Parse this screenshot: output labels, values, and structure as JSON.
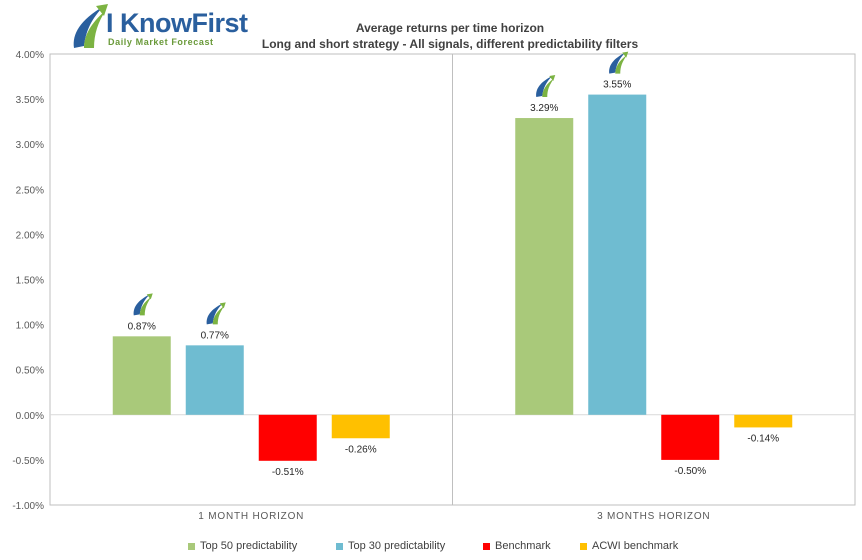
{
  "logo": {
    "brand": "I KnowFirst",
    "tagline": "Daily Market Forecast"
  },
  "chart_data": {
    "type": "bar",
    "title": "Average returns per time horizon",
    "subtitle": "Long and short strategy - All signals, different predictability filters",
    "categories": [
      "1 MONTH HORIZON",
      "3 MONTHS HORIZON"
    ],
    "series": [
      {
        "name": "Top 50 predictability",
        "color": "#a9c97a",
        "values": [
          0.87,
          3.29
        ],
        "labels": [
          "0.87%",
          "3.29%"
        ],
        "highlight": [
          true,
          true
        ]
      },
      {
        "name": "Top 30 predictability",
        "color": "#6fbcd1",
        "values": [
          0.77,
          3.55
        ],
        "labels": [
          "0.77%",
          "3.55%"
        ],
        "highlight": [
          true,
          true
        ]
      },
      {
        "name": "Benchmark",
        "color": "#ff0000",
        "values": [
          -0.51,
          -0.5
        ],
        "labels": [
          "-0.51%",
          "-0.50%"
        ],
        "highlight": [
          false,
          false
        ]
      },
      {
        "name": "ACWI benchmark",
        "color": "#ffc000",
        "values": [
          -0.26,
          -0.14
        ],
        "labels": [
          "-0.26%",
          "-0.14%"
        ],
        "highlight": [
          false,
          false
        ]
      }
    ],
    "ylim": [
      -1.0,
      4.0
    ],
    "yticks": [
      "4.00%",
      "3.50%",
      "3.00%",
      "2.50%",
      "2.00%",
      "1.50%",
      "1.00%",
      "0.50%",
      "0.00%",
      "-0.50%",
      "-1.00%"
    ],
    "legend_position": "bottom",
    "grid": false
  }
}
